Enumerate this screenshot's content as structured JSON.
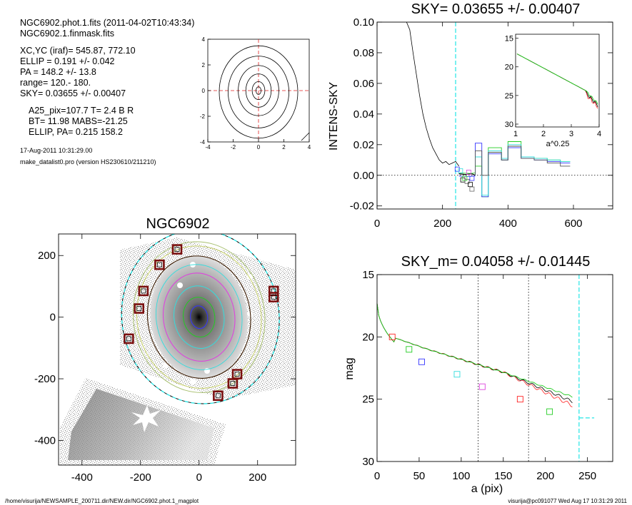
{
  "info": {
    "line1": "NGC6902.phot.1.fits  (2011-04-02T10:43:34)",
    "line2": "NGC6902.1.finmask.fits",
    "line3": "XC,YC (iraf)=   545.87, 772.10",
    "line4": "ELLIP = 0.191 +/- 0.042",
    "line5": "PA    = 148.2 +/-  13.8",
    "line6": "range=  120.-  180.",
    "line7": "SKY= 0.03655 +/- 0.00407",
    "line8": "A25_pix=107.7   T= 2.4  B R",
    "line9": "BT=  11.98   MABS=-21.25",
    "line10": "ELLIP, PA= 0.215   158.2",
    "date": "17-Aug-2011 10:31:29.00",
    "program": "make_datalist0.pro (version HS230610/211210)"
  },
  "footer": {
    "path": "/home/visurija/NEWSAMPLE_200711.dir/NEW.dir/NGC6902.phot.1_magplot",
    "user": "visurija@pc091077  Wed Aug 17 10:31:29 2011"
  },
  "colors": {
    "black": "#000000",
    "red": "#ff2222",
    "green": "#22cc22",
    "blue": "#3333ff",
    "cyan": "#33dddd",
    "magenta": "#dd44dd",
    "grey": "#7a7a7a",
    "dark_red": "#7a1010",
    "sky": "#22e5e5"
  },
  "chart_data": [
    {
      "id": "contour",
      "type": "contour",
      "xlim": [
        -4,
        4
      ],
      "ylim": [
        -4,
        4
      ],
      "xticks": [
        "-4",
        "-2",
        "0",
        "2",
        "4"
      ],
      "yticks": [
        "-4",
        "-2",
        "0",
        "2",
        "4"
      ],
      "levels_semi_axes": [
        [
          0.2,
          0.3
        ],
        [
          0.5,
          0.7
        ],
        [
          1.0,
          1.3
        ],
        [
          1.6,
          1.95
        ],
        [
          2.4,
          2.8
        ],
        [
          3.1,
          3.6
        ]
      ],
      "center": [
        0,
        0
      ]
    },
    {
      "id": "sky_profile",
      "type": "line",
      "title": "SKY= 0.03655 +/- 0.00407",
      "ylabel": "INTENS-SKY",
      "xlim": [
        0,
        720
      ],
      "ylim": [
        -0.022,
        0.1
      ],
      "xticks": [
        "0",
        "200",
        "400",
        "600"
      ],
      "yticks": [
        "-0.02",
        "0.00",
        "0.02",
        "0.04",
        "0.06",
        "0.08",
        "0.10"
      ],
      "sky_marker_x": 240,
      "profile": [
        [
          90,
          0.105
        ],
        [
          100,
          0.095
        ],
        [
          110,
          0.08
        ],
        [
          120,
          0.066
        ],
        [
          130,
          0.052
        ],
        [
          140,
          0.04
        ],
        [
          150,
          0.031
        ],
        [
          160,
          0.024
        ],
        [
          170,
          0.018
        ],
        [
          180,
          0.014
        ],
        [
          190,
          0.01
        ],
        [
          200,
          0.008
        ],
        [
          210,
          0.009
        ],
        [
          220,
          0.007
        ],
        [
          230,
          0.008
        ],
        [
          240,
          0.009
        ],
        [
          250,
          0.006
        ]
      ],
      "squares": [
        [
          245,
          0.004
        ],
        [
          255,
          0.003
        ],
        [
          262,
          -0.003
        ],
        [
          268,
          -0.002
        ],
        [
          275,
          -0.004
        ],
        [
          280,
          0.002
        ],
        [
          285,
          -0.006
        ],
        [
          290,
          -0.009
        ],
        [
          290,
          -0.002
        ]
      ],
      "inset": {
        "xlabel": "a^0.25",
        "xlim": [
          1,
          4
        ],
        "ylim": [
          30,
          15
        ],
        "xticks": [
          "1",
          "2",
          "3",
          "4"
        ],
        "yticks": [
          "15",
          "20",
          "25",
          "30"
        ]
      }
    },
    {
      "id": "image",
      "type": "image",
      "title": "NGC6902",
      "xlim": [
        -480,
        330
      ],
      "ylim": [
        -480,
        270
      ],
      "xticks": [
        "-400",
        "-200",
        "0",
        "200"
      ],
      "yticks": [
        "-400",
        "-200",
        "0",
        "200"
      ],
      "masks": [
        [
          -75,
          220
        ],
        [
          -135,
          170
        ],
        [
          -190,
          85
        ],
        [
          -205,
          28
        ],
        [
          -240,
          -70
        ],
        [
          255,
          85
        ],
        [
          255,
          65
        ],
        [
          130,
          -185
        ],
        [
          115,
          -215
        ],
        [
          65,
          -255
        ]
      ]
    },
    {
      "id": "mag_profile",
      "type": "line",
      "title": "SKY_m=  0.04058 +/- 0.01445",
      "xlabel": "a (pix)",
      "ylabel": "mag",
      "xlim": [
        0,
        280
      ],
      "ylim": [
        30,
        15
      ],
      "xticks": [
        "0",
        "50",
        "100",
        "150",
        "200",
        "250"
      ],
      "yticks": [
        "15",
        "20",
        "25",
        "30"
      ],
      "range_lines": [
        120,
        180
      ],
      "sky_line_x": 240,
      "sky_mag": 26.5,
      "squares": [
        [
          18,
          20.0,
          "red"
        ],
        [
          38,
          21.0,
          "green"
        ],
        [
          53,
          22.0,
          "blue"
        ],
        [
          95,
          23.0,
          "cyan"
        ],
        [
          125,
          24.0,
          "magenta"
        ],
        [
          170,
          25.0,
          "red"
        ],
        [
          205,
          26.0,
          "green"
        ]
      ]
    }
  ]
}
